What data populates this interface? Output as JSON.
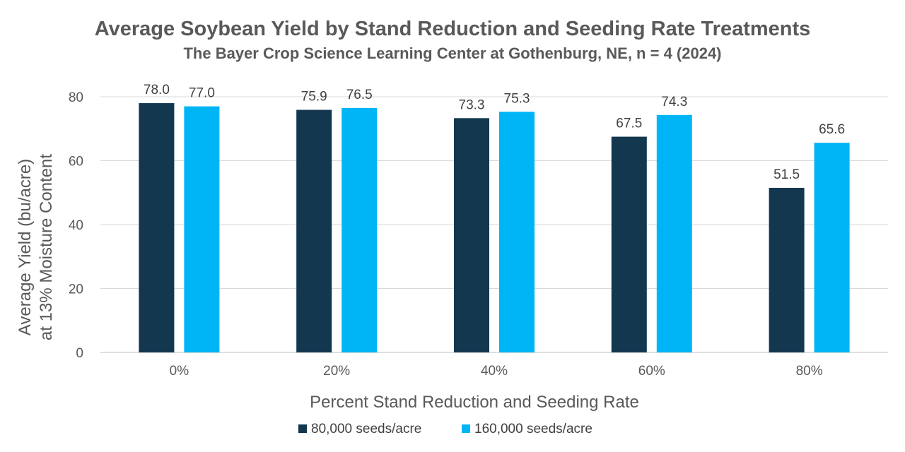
{
  "chart_data": {
    "type": "bar",
    "title": "Average Soybean Yield by Stand Reduction and Seeding Rate Treatments",
    "subtitle": "The Bayer Crop Science Learning Center at Gothenburg, NE, n = 4 (2024)",
    "xlabel": "Percent Stand Reduction and Seeding Rate",
    "ylabel_line1": "Average Yield (bu/acre)",
    "ylabel_line2": "at 13% Moisture Content",
    "categories": [
      "0%",
      "20%",
      "40%",
      "60%",
      "80%"
    ],
    "series": [
      {
        "name": "80,000 seeds/acre",
        "color": "#12374F",
        "values": [
          78.0,
          75.9,
          73.3,
          67.5,
          51.5
        ]
      },
      {
        "name": "160,000 seeds/acre",
        "color": "#00B5F5",
        "values": [
          77.0,
          76.5,
          75.3,
          74.3,
          65.6
        ]
      }
    ],
    "ylim": [
      0,
      80
    ],
    "yticks": [
      0,
      20,
      40,
      60,
      80
    ],
    "grid": true,
    "legend": "bottom-center"
  }
}
